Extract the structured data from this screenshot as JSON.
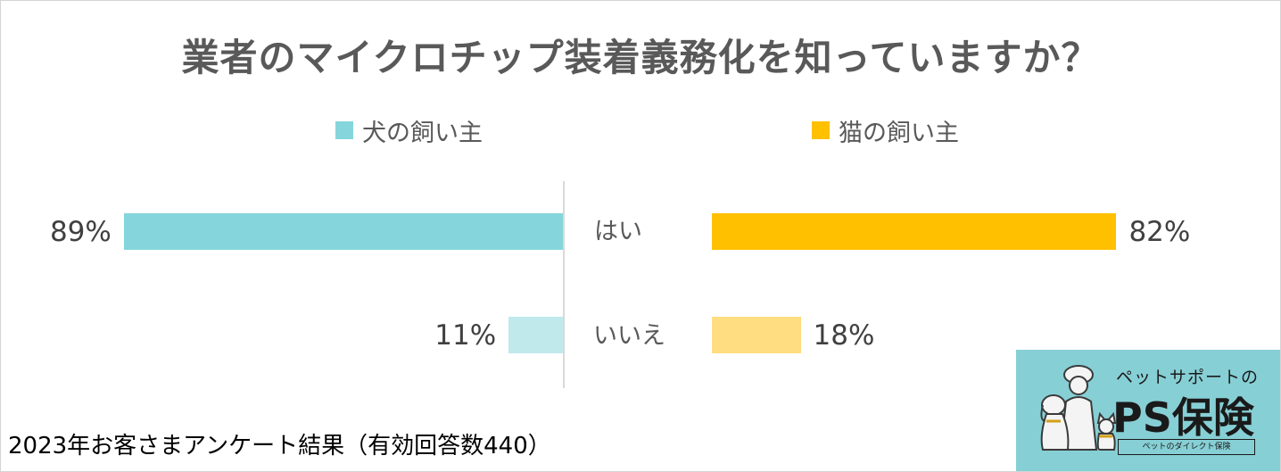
{
  "chart_data": {
    "type": "bar",
    "orientation": "horizontal-diverging",
    "title": "業者のマイクロチップ装着義務化を知っていますか？",
    "categories": [
      "はい",
      "いいえ"
    ],
    "xlim": [
      0,
      100
    ],
    "grid": false,
    "legend_position": "top",
    "series": [
      {
        "name": "犬の飼い主",
        "values": [
          89,
          11
        ],
        "value_labels": [
          "89%",
          "11%"
        ],
        "colors": [
          "#84d6dc",
          "#c0e9ec"
        ]
      },
      {
        "name": "猫の飼い主",
        "values": [
          82,
          18
        ],
        "value_labels": [
          "82%",
          "18%"
        ],
        "colors": [
          "#ffc000",
          "#ffdd80"
        ]
      }
    ]
  },
  "footer": "2023年お客さまアンケート結果（有効回答数440）",
  "logo": {
    "tagline": "ペットサポートの",
    "name": "PS保険",
    "sub": "ペットのダイレクト保険",
    "background": "#86cfd5"
  }
}
